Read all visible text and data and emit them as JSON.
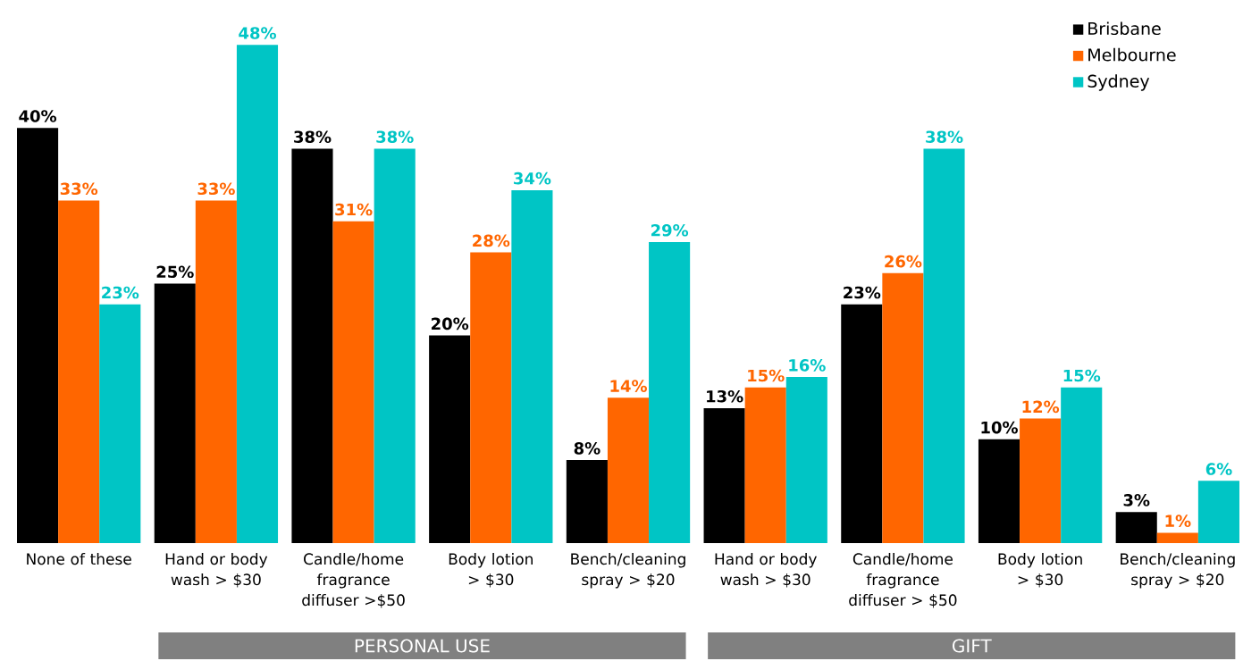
{
  "chart_data": {
    "type": "bar",
    "categories": [
      "None of these",
      "Hand or body wash > $30",
      "Candle/home fragrance diffuser >$50",
      "Body lotion > $30",
      "Bench/cleaning spray > $20",
      "Hand or body wash > $30",
      "Candle/home fragrance diffuser > $50",
      "Body lotion > $30",
      "Bench/cleaning spray > $20"
    ],
    "series": [
      {
        "name": "Brisbane",
        "color": "#000000",
        "values": [
          40,
          25,
          38,
          20,
          8,
          13,
          23,
          10,
          3
        ],
        "value_labels": [
          "40%",
          "25%",
          "38%",
          "20%",
          "8%",
          "13%",
          "23%",
          "10%",
          "3%"
        ]
      },
      {
        "name": "Melbourne",
        "color": "#ff6600",
        "values": [
          33,
          33,
          31,
          28,
          14,
          15,
          26,
          12,
          1
        ],
        "value_labels": [
          "33%",
          "33%",
          "31%",
          "28%",
          "14%",
          "15%",
          "26%",
          "12%",
          "1%"
        ]
      },
      {
        "name": "Sydney",
        "color": "#00c5c5",
        "values": [
          23,
          48,
          38,
          34,
          29,
          16,
          38,
          15,
          6
        ],
        "value_labels": [
          "23%",
          "48%",
          "38%",
          "34%",
          "29%",
          "16%",
          "38%",
          "15%",
          "6%"
        ]
      }
    ],
    "legend": "top right",
    "annotations": [
      "PERSONAL USE",
      "GIFT"
    ]
  }
}
